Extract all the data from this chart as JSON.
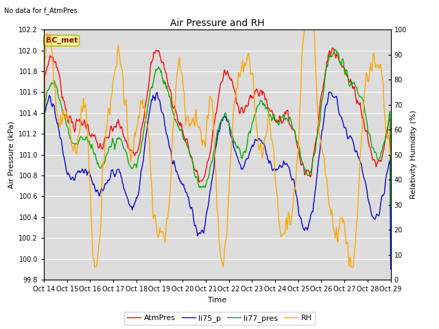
{
  "title": "Air Pressure and RH",
  "top_left_text": "No data for f_AtmPres",
  "box_label": "BC_met",
  "xlabel": "Time",
  "ylabel_left": "Air Pressure (kPa)",
  "ylabel_right": "Relativity Humidity (%)",
  "x_tick_labels": [
    "Oct 14",
    "Oct 15",
    "Oct 16",
    "Oct 17",
    "Oct 18",
    "Oct 19",
    "Oct 20",
    "Oct 21",
    "Oct 22",
    "Oct 23",
    "Oct 24",
    "Oct 25",
    "Oct 26",
    "Oct 27",
    "Oct 28",
    "Oct 29"
  ],
  "ylim_left": [
    99.8,
    102.2
  ],
  "ylim_right": [
    0,
    100
  ],
  "yticks_left": [
    99.8,
    100.0,
    100.2,
    100.4,
    100.6,
    100.8,
    101.0,
    101.2,
    101.4,
    101.6,
    101.8,
    102.0,
    102.2
  ],
  "yticks_right": [
    0,
    10,
    20,
    30,
    40,
    50,
    60,
    70,
    80,
    90,
    100
  ],
  "colors": {
    "AtmPres": "#ff0000",
    "li75_p": "#0000cc",
    "li77_pres": "#00aa00",
    "RH": "#ffa500"
  },
  "legend_labels": [
    "AtmPres",
    "li75_p",
    "li77_pres",
    "RH"
  ],
  "bg_color": "#dcdcdc",
  "n_points": 500
}
